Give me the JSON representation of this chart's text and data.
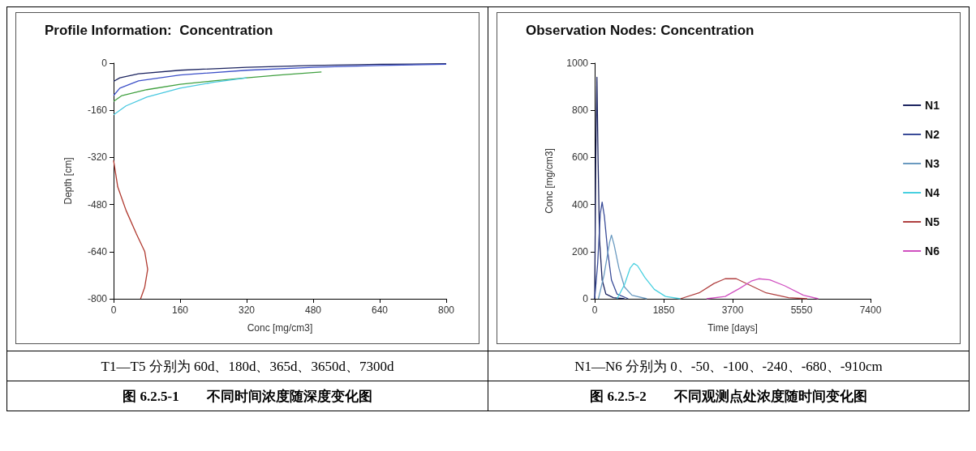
{
  "chart_data": [
    {
      "type": "line",
      "title": "Profile Information:  Concentration",
      "xlabel": "Conc [mg/cm3]",
      "ylabel": "Depth [cm]",
      "xlim": [
        0,
        800
      ],
      "xticks": [
        0,
        160,
        320,
        480,
        640,
        800
      ],
      "ylim": [
        -800,
        0
      ],
      "yticks": [
        -800,
        -640,
        -480,
        -320,
        -160,
        0
      ],
      "grid": false,
      "legend": false,
      "marker": "none",
      "series": [
        {
          "color": "#1c2460",
          "x": [
            800,
            640,
            480,
            320,
            160,
            60,
            15,
            0
          ],
          "values": [
            -2,
            -4,
            -8,
            -14,
            -24,
            -36,
            -50,
            -62
          ]
        },
        {
          "color": "#3c50c8",
          "x": [
            800,
            640,
            480,
            320,
            160,
            60,
            15,
            0
          ],
          "values": [
            -4,
            -8,
            -14,
            -24,
            -40,
            -60,
            -85,
            -110
          ]
        },
        {
          "color": "#40a040",
          "x": [
            500,
            400,
            320,
            240,
            160,
            80,
            20,
            0
          ],
          "values": [
            -30,
            -40,
            -50,
            -60,
            -72,
            -90,
            -110,
            -130
          ]
        },
        {
          "color": "#48c8e0",
          "x": [
            320,
            240,
            160,
            80,
            30,
            0
          ],
          "values": [
            -50,
            -65,
            -85,
            -115,
            -145,
            -175
          ]
        },
        {
          "color": "#b03a30",
          "x": [
            0,
            10,
            30,
            55,
            75,
            82,
            75,
            65
          ],
          "values": [
            -330,
            -420,
            -500,
            -580,
            -640,
            -700,
            -760,
            -800
          ]
        }
      ],
      "annotations": [
        "T1—T5 分别为 60d、180d、365d、3650d、7300d",
        "图 6.2.5-1　　不同时间浓度随深度变化图"
      ]
    },
    {
      "type": "line",
      "title": "Observation Nodes: Concentration",
      "xlabel": "Time [days]",
      "ylabel": "Conc [mg/cm3]",
      "xlim": [
        0,
        7400
      ],
      "xticks": [
        0,
        1850,
        3700,
        5550,
        7400
      ],
      "ylim": [
        0,
        1000
      ],
      "yticks": [
        0,
        200,
        400,
        600,
        800,
        1000
      ],
      "grid": false,
      "legend": "right",
      "marker": "none",
      "series": [
        {
          "name": "N1",
          "color": "#1c2460",
          "x": [
            0,
            30,
            60,
            90,
            130,
            200,
            300,
            500,
            800
          ],
          "values": [
            0,
            600,
            940,
            600,
            250,
            80,
            20,
            5,
            0
          ]
        },
        {
          "name": "N2",
          "color": "#3a4c98",
          "x": [
            0,
            80,
            150,
            200,
            260,
            350,
            450,
            600,
            900
          ],
          "values": [
            0,
            150,
            360,
            410,
            350,
            200,
            80,
            20,
            0
          ]
        },
        {
          "name": "N3",
          "color": "#6a9ac0",
          "x": [
            100,
            250,
            400,
            450,
            520,
            650,
            800,
            1000,
            1400
          ],
          "values": [
            0,
            100,
            240,
            270,
            230,
            130,
            50,
            15,
            0
          ]
        },
        {
          "name": "N4",
          "color": "#48d0e0",
          "x": [
            600,
            800,
            950,
            1050,
            1150,
            1350,
            1600,
            1900,
            2300
          ],
          "values": [
            0,
            60,
            130,
            150,
            140,
            90,
            40,
            10,
            0
          ]
        },
        {
          "name": "N5",
          "color": "#b04040",
          "x": [
            2300,
            2800,
            3200,
            3500,
            3800,
            4200,
            4600,
            5200,
            5700
          ],
          "values": [
            0,
            25,
            65,
            85,
            85,
            55,
            25,
            5,
            0
          ]
        },
        {
          "name": "N6",
          "color": "#d050c0",
          "x": [
            3000,
            3500,
            3900,
            4200,
            4400,
            4700,
            5100,
            5600,
            6000
          ],
          "values": [
            0,
            10,
            45,
            75,
            85,
            80,
            55,
            15,
            0
          ]
        }
      ],
      "annotations": [
        "N1—N6 分别为 0、-50、-100、-240、-680、-910cm",
        "图 6.2.5-2　　不同观测点处浓度随时间变化图"
      ]
    }
  ]
}
